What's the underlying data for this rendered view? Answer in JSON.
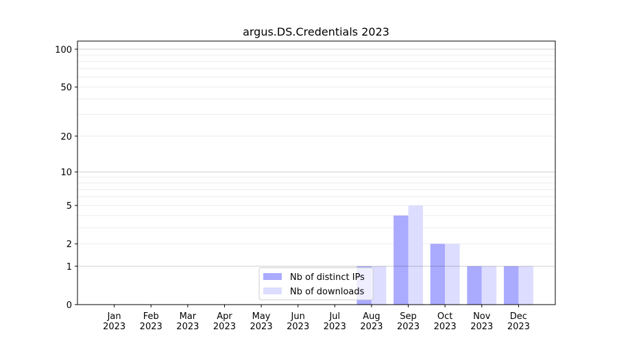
{
  "chart_data": {
    "type": "bar",
    "title": "argus.DS.Credentials 2023",
    "xlabel": "",
    "ylabel": "",
    "yscale": "log(1+y)",
    "ylim": [
      0,
      116
    ],
    "yticks": [
      0,
      1,
      2,
      5,
      10,
      20,
      50,
      100
    ],
    "grid": true,
    "legend_position": "lower-center",
    "categories": [
      "Jan\n2023",
      "Feb\n2023",
      "Mar\n2023",
      "Apr\n2023",
      "May\n2023",
      "Jun\n2023",
      "Jul\n2023",
      "Aug\n2023",
      "Sep\n2023",
      "Oct\n2023",
      "Nov\n2023",
      "Dec\n2023"
    ],
    "series": [
      {
        "name": "Nb of distinct IPs",
        "color": "#aaaaff",
        "values": [
          0,
          0,
          0,
          0,
          0,
          0,
          0,
          1,
          4,
          2,
          1,
          1
        ]
      },
      {
        "name": "Nb of downloads",
        "color": "#ddddff",
        "values": [
          0,
          0,
          0,
          0,
          0,
          0,
          0,
          1,
          5,
          2,
          1,
          1
        ]
      }
    ]
  }
}
